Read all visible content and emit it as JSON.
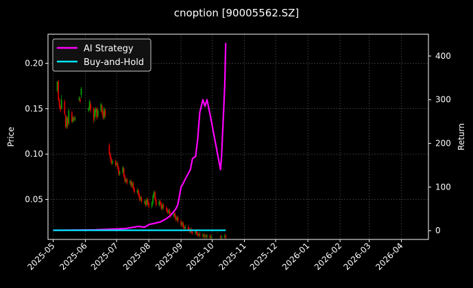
{
  "chart_data": {
    "type": "candlestick+line",
    "title": "cnoption [90005562.SZ]",
    "ylabel_left": "Price",
    "ylabel_right": "Return",
    "ylim_left": [
      0.006,
      0.232
    ],
    "ylim_right": [
      -20,
      450
    ],
    "xlim": [
      "2025-04-26",
      "2026-04-27"
    ],
    "x_ticks": [
      "2025-05",
      "2025-06",
      "2025-07",
      "2025-08",
      "2025-09",
      "2025-10",
      "2025-11",
      "2025-12",
      "2026-01",
      "2026-02",
      "2026-03",
      "2026-04"
    ],
    "y_ticks_left": [
      0.05,
      0.1,
      0.15,
      0.2
    ],
    "y_ticks_left_labels": [
      "0.05",
      "0.10",
      "0.15",
      "0.20"
    ],
    "y_ticks_right": [
      0,
      100,
      200,
      300,
      400
    ],
    "y_ticks_right_labels": [
      "0",
      "100",
      "200",
      "300",
      "400"
    ],
    "grid": true,
    "legend": {
      "placement": "top-left",
      "entries": [
        "AI Strategy",
        "Buy-and-Hold"
      ]
    },
    "colors": {
      "background": "#000000",
      "strategy": "#ff00ff",
      "buy_hold": "#00e5ff",
      "up": "#00a000",
      "down": "#dd0000",
      "grid": "#555555",
      "text": "#ffffff"
    },
    "candles": [
      [
        "2025-05-05",
        0.17,
        0.18,
        0.18,
        0.168
      ],
      [
        "2025-05-06",
        0.18,
        0.16,
        0.182,
        0.158
      ],
      [
        "2025-05-07",
        0.16,
        0.152,
        0.162,
        0.15
      ],
      [
        "2025-05-08",
        0.152,
        0.148,
        0.154,
        0.146
      ],
      [
        "2025-05-09",
        0.15,
        0.16,
        0.165,
        0.15
      ],
      [
        "2025-05-12",
        0.158,
        0.144,
        0.16,
        0.142
      ],
      [
        "2025-05-13",
        0.142,
        0.13,
        0.144,
        0.128
      ],
      [
        "2025-05-14",
        0.13,
        0.14,
        0.142,
        0.128
      ],
      [
        "2025-05-15",
        0.14,
        0.132,
        0.142,
        0.128
      ],
      [
        "2025-05-16",
        0.134,
        0.148,
        0.15,
        0.132
      ],
      [
        "2025-05-19",
        0.146,
        0.136,
        0.148,
        0.134
      ],
      [
        "2025-05-20",
        0.136,
        0.14,
        0.142,
        0.134
      ],
      [
        "2025-05-21",
        0.14,
        0.138,
        0.142,
        0.136
      ],
      [
        "2025-05-22",
        0.138,
        0.14,
        0.142,
        0.136
      ],
      [
        "2025-05-26",
        0.16,
        0.162,
        0.164,
        0.158
      ],
      [
        "2025-05-27",
        0.16,
        0.158,
        0.163,
        0.156
      ],
      [
        "2025-05-28",
        0.165,
        0.172,
        0.174,
        0.162
      ],
      [
        "2025-06-04",
        0.148,
        0.15,
        0.152,
        0.146
      ],
      [
        "2025-06-05",
        0.15,
        0.158,
        0.16,
        0.148
      ],
      [
        "2025-06-06",
        0.155,
        0.148,
        0.158,
        0.145
      ],
      [
        "2025-06-09",
        0.15,
        0.138,
        0.152,
        0.134
      ],
      [
        "2025-06-10",
        0.14,
        0.148,
        0.15,
        0.136
      ],
      [
        "2025-06-11",
        0.146,
        0.15,
        0.152,
        0.142
      ],
      [
        "2025-06-12",
        0.15,
        0.14,
        0.152,
        0.138
      ],
      [
        "2025-06-13",
        0.142,
        0.148,
        0.15,
        0.14
      ],
      [
        "2025-06-16",
        0.148,
        0.155,
        0.157,
        0.146
      ],
      [
        "2025-06-17",
        0.153,
        0.146,
        0.155,
        0.143
      ],
      [
        "2025-06-18",
        0.146,
        0.14,
        0.148,
        0.138
      ],
      [
        "2025-06-19",
        0.14,
        0.15,
        0.152,
        0.138
      ],
      [
        "2025-06-20",
        0.148,
        0.142,
        0.15,
        0.14
      ],
      [
        "2025-06-24",
        0.11,
        0.1,
        0.112,
        0.098
      ],
      [
        "2025-06-25",
        0.1,
        0.095,
        0.102,
        0.092
      ],
      [
        "2025-06-26",
        0.095,
        0.09,
        0.097,
        0.088
      ],
      [
        "2025-06-27",
        0.09,
        0.092,
        0.094,
        0.088
      ],
      [
        "2025-06-30",
        0.092,
        0.088,
        0.094,
        0.086
      ],
      [
        "2025-07-01",
        0.088,
        0.09,
        0.092,
        0.086
      ],
      [
        "2025-07-02",
        0.09,
        0.085,
        0.092,
        0.083
      ],
      [
        "2025-07-03",
        0.085,
        0.078,
        0.087,
        0.076
      ],
      [
        "2025-07-04",
        0.078,
        0.08,
        0.082,
        0.076
      ],
      [
        "2025-07-07",
        0.08,
        0.085,
        0.087,
        0.078
      ],
      [
        "2025-07-08",
        0.084,
        0.076,
        0.086,
        0.074
      ],
      [
        "2025-07-09",
        0.076,
        0.07,
        0.078,
        0.068
      ],
      [
        "2025-07-10",
        0.07,
        0.072,
        0.074,
        0.068
      ],
      [
        "2025-07-11",
        0.072,
        0.068,
        0.074,
        0.066
      ],
      [
        "2025-07-14",
        0.068,
        0.07,
        0.072,
        0.066
      ],
      [
        "2025-07-15",
        0.07,
        0.065,
        0.072,
        0.063
      ],
      [
        "2025-07-16",
        0.065,
        0.068,
        0.07,
        0.063
      ],
      [
        "2025-07-17",
        0.068,
        0.062,
        0.07,
        0.06
      ],
      [
        "2025-07-18",
        0.062,
        0.058,
        0.064,
        0.056
      ],
      [
        "2025-07-21",
        0.058,
        0.06,
        0.062,
        0.056
      ],
      [
        "2025-07-22",
        0.06,
        0.055,
        0.062,
        0.053
      ],
      [
        "2025-07-23",
        0.055,
        0.05,
        0.057,
        0.048
      ],
      [
        "2025-07-24",
        0.05,
        0.052,
        0.054,
        0.048
      ],
      [
        "2025-07-25",
        0.052,
        0.048,
        0.054,
        0.046
      ],
      [
        "2025-07-28",
        0.046,
        0.048,
        0.05,
        0.044
      ],
      [
        "2025-07-29",
        0.048,
        0.044,
        0.05,
        0.042
      ],
      [
        "2025-07-30",
        0.044,
        0.05,
        0.052,
        0.042
      ],
      [
        "2025-07-31",
        0.05,
        0.046,
        0.052,
        0.044
      ],
      [
        "2025-08-01",
        0.046,
        0.042,
        0.048,
        0.04
      ],
      [
        "2025-08-04",
        0.042,
        0.046,
        0.048,
        0.04
      ],
      [
        "2025-08-05",
        0.046,
        0.054,
        0.056,
        0.044
      ],
      [
        "2025-08-06",
        0.054,
        0.058,
        0.06,
        0.052
      ],
      [
        "2025-08-07",
        0.058,
        0.05,
        0.06,
        0.048
      ],
      [
        "2025-08-08",
        0.05,
        0.044,
        0.052,
        0.042
      ],
      [
        "2025-08-11",
        0.044,
        0.048,
        0.05,
        0.042
      ],
      [
        "2025-08-12",
        0.048,
        0.045,
        0.05,
        0.043
      ],
      [
        "2025-08-13",
        0.045,
        0.04,
        0.047,
        0.038
      ],
      [
        "2025-08-14",
        0.04,
        0.044,
        0.046,
        0.038
      ],
      [
        "2025-08-15",
        0.044,
        0.041,
        0.046,
        0.039
      ],
      [
        "2025-08-18",
        0.041,
        0.038,
        0.043,
        0.036
      ],
      [
        "2025-08-19",
        0.038,
        0.036,
        0.04,
        0.034
      ],
      [
        "2025-08-20",
        0.036,
        0.038,
        0.04,
        0.034
      ],
      [
        "2025-08-21",
        0.038,
        0.034,
        0.04,
        0.032
      ],
      [
        "2025-08-22",
        0.034,
        0.032,
        0.036,
        0.03
      ],
      [
        "2025-08-25",
        0.032,
        0.035,
        0.037,
        0.03
      ],
      [
        "2025-08-26",
        0.035,
        0.031,
        0.037,
        0.029
      ],
      [
        "2025-08-27",
        0.031,
        0.028,
        0.033,
        0.026
      ],
      [
        "2025-08-28",
        0.028,
        0.03,
        0.032,
        0.026
      ],
      [
        "2025-08-29",
        0.03,
        0.026,
        0.032,
        0.024
      ],
      [
        "2025-09-01",
        0.026,
        0.022,
        0.028,
        0.02
      ],
      [
        "2025-09-02",
        0.022,
        0.024,
        0.026,
        0.02
      ],
      [
        "2025-09-03",
        0.024,
        0.02,
        0.026,
        0.018
      ],
      [
        "2025-09-04",
        0.02,
        0.018,
        0.022,
        0.016
      ],
      [
        "2025-09-05",
        0.018,
        0.02,
        0.022,
        0.016
      ],
      [
        "2025-09-08",
        0.02,
        0.017,
        0.022,
        0.015
      ],
      [
        "2025-09-09",
        0.017,
        0.015,
        0.019,
        0.013
      ],
      [
        "2025-09-10",
        0.015,
        0.017,
        0.019,
        0.013
      ],
      [
        "2025-09-11",
        0.017,
        0.014,
        0.019,
        0.012
      ],
      [
        "2025-09-12",
        0.014,
        0.013,
        0.016,
        0.011
      ],
      [
        "2025-09-15",
        0.013,
        0.015,
        0.017,
        0.011
      ],
      [
        "2025-09-16",
        0.015,
        0.012,
        0.017,
        0.01
      ],
      [
        "2025-09-17",
        0.012,
        0.011,
        0.014,
        0.009
      ],
      [
        "2025-09-18",
        0.011,
        0.012,
        0.014,
        0.009
      ],
      [
        "2025-09-19",
        0.012,
        0.01,
        0.014,
        0.008
      ],
      [
        "2025-09-22",
        0.01,
        0.011,
        0.013,
        0.008
      ],
      [
        "2025-09-23",
        0.011,
        0.009,
        0.013,
        0.007
      ],
      [
        "2025-09-24",
        0.009,
        0.01,
        0.012,
        0.007
      ],
      [
        "2025-09-25",
        0.01,
        0.009,
        0.012,
        0.007
      ],
      [
        "2025-09-26",
        0.009,
        0.01,
        0.012,
        0.007
      ],
      [
        "2025-09-29",
        0.01,
        0.008,
        0.012,
        0.006
      ],
      [
        "2025-09-30",
        0.008,
        0.009,
        0.011,
        0.006
      ],
      [
        "2025-10-09",
        0.009,
        0.008,
        0.011,
        0.006
      ],
      [
        "2025-10-10",
        0.008,
        0.009,
        0.011,
        0.006
      ],
      [
        "2025-10-13",
        0.009,
        0.01,
        0.012,
        0.007
      ],
      [
        "2025-10-14",
        0.01,
        0.008,
        0.012,
        0.006
      ]
    ],
    "series": [
      {
        "name": "AI Strategy",
        "x": [
          "2025-05-01",
          "2025-06-10",
          "2025-07-10",
          "2025-07-22",
          "2025-07-28",
          "2025-08-01",
          "2025-08-12",
          "2025-08-18",
          "2025-08-22",
          "2025-08-27",
          "2025-08-29",
          "2025-09-01",
          "2025-09-03",
          "2025-09-05",
          "2025-09-10",
          "2025-09-12",
          "2025-09-15",
          "2025-09-17",
          "2025-09-19",
          "2025-09-22",
          "2025-09-24",
          "2025-09-26",
          "2025-09-29",
          "2025-10-09",
          "2025-10-10",
          "2025-10-13",
          "2025-10-14"
        ],
        "values": [
          1,
          2,
          5,
          10,
          8,
          14,
          20,
          28,
          35,
          50,
          60,
          100,
          108,
          118,
          140,
          165,
          170,
          210,
          270,
          300,
          285,
          300,
          265,
          140,
          170,
          330,
          430
        ]
      },
      {
        "name": "Buy-and-Hold",
        "x": [
          "2025-05-01",
          "2025-10-14"
        ],
        "values": [
          1,
          1
        ]
      }
    ]
  }
}
